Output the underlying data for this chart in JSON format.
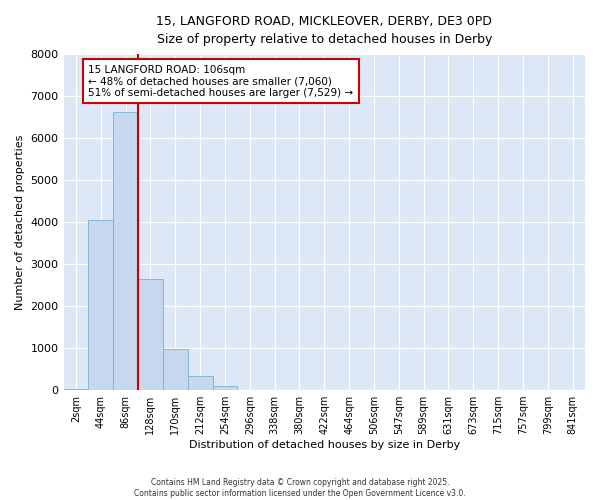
{
  "title_line1": "15, LANGFORD ROAD, MICKLEOVER, DERBY, DE3 0PD",
  "title_line2": "Size of property relative to detached houses in Derby",
  "xlabel": "Distribution of detached houses by size in Derby",
  "ylabel": "Number of detached properties",
  "bar_values": [
    30,
    4050,
    6630,
    2650,
    980,
    330,
    100,
    0,
    0,
    0,
    0,
    0,
    0,
    0,
    0,
    0,
    0,
    0,
    0,
    0,
    0
  ],
  "bar_labels": [
    "2sqm",
    "44sqm",
    "86sqm",
    "128sqm",
    "170sqm",
    "212sqm",
    "254sqm",
    "296sqm",
    "338sqm",
    "380sqm",
    "422sqm",
    "464sqm",
    "506sqm",
    "547sqm",
    "589sqm",
    "631sqm",
    "673sqm",
    "715sqm",
    "757sqm",
    "799sqm",
    "841sqm"
  ],
  "bar_color": "#c5d8f0",
  "bar_edge_color": "#7bafd4",
  "plot_bg_color": "#dce8f5",
  "fig_bg_color": "#ffffff",
  "grid_color": "#ffffff",
  "vline_x_index": 2.5,
  "vline_color": "#cc0000",
  "annotation_title": "15 LANGFORD ROAD: 106sqm",
  "annotation_line2": "← 48% of detached houses are smaller (7,060)",
  "annotation_line3": "51% of semi-detached houses are larger (7,529) →",
  "annotation_box_facecolor": "#ffffff",
  "annotation_box_edgecolor": "#cc0000",
  "ylim": [
    0,
    8000
  ],
  "yticks": [
    0,
    1000,
    2000,
    3000,
    4000,
    5000,
    6000,
    7000,
    8000
  ],
  "footnote_line1": "Contains HM Land Registry data © Crown copyright and database right 2025.",
  "footnote_line2": "Contains public sector information licensed under the Open Government Licence v3.0."
}
